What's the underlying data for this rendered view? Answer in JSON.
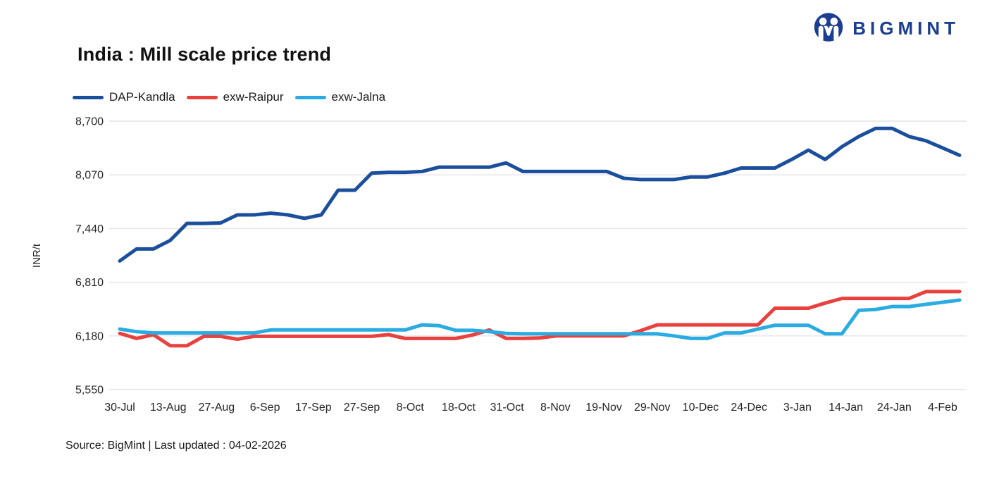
{
  "header": {
    "title": "India : Mill scale price trend",
    "brand": "BIGMINT"
  },
  "chart_data": {
    "type": "line",
    "title": "India : Mill scale price trend",
    "ylabel": "INR/t",
    "xlabel": "",
    "ylim": [
      5550,
      8700
    ],
    "yticks": [
      8700,
      8070,
      7440,
      6810,
      6180,
      5550
    ],
    "ytick_labels": [
      "8,700",
      "8,070",
      "7,440",
      "6,810",
      "6,180",
      "5,550"
    ],
    "grid": "horizontal",
    "legend_position": "top-left",
    "x_labels": [
      "30-Jul",
      "13-Aug",
      "27-Aug",
      "6-Sep",
      "17-Sep",
      "27-Sep",
      "8-Oct",
      "18-Oct",
      "31-Oct",
      "8-Nov",
      "19-Nov",
      "29-Nov",
      "10-Dec",
      "24-Dec",
      "3-Jan",
      "14-Jan",
      "24-Jan",
      "4-Feb"
    ],
    "series": [
      {
        "name": "DAP-Kandla",
        "color": "#1b4f9c",
        "values": [
          7060,
          7200,
          7200,
          7300,
          7500,
          7500,
          7505,
          7600,
          7600,
          7620,
          7600,
          7560,
          7600,
          7890,
          7890,
          8090,
          8100,
          8100,
          8110,
          8160,
          8160,
          8160,
          8160,
          8210,
          8110,
          8110,
          8110,
          8110,
          8110,
          8110,
          8030,
          8015,
          8015,
          8015,
          8045,
          8045,
          8090,
          8150,
          8150,
          8150,
          8250,
          8360,
          8250,
          8400,
          8520,
          8615,
          8615,
          8520,
          8470,
          8385,
          8300
        ]
      },
      {
        "name": "exw-Raipur",
        "color": "#e8413e",
        "values": [
          6210,
          6150,
          6195,
          6065,
          6065,
          6175,
          6175,
          6140,
          6175,
          6175,
          6175,
          6175,
          6175,
          6175,
          6175,
          6175,
          6195,
          6150,
          6150,
          6150,
          6150,
          6190,
          6250,
          6150,
          6150,
          6155,
          6180,
          6180,
          6180,
          6180,
          6180,
          6240,
          6310,
          6310,
          6310,
          6310,
          6310,
          6310,
          6310,
          6505,
          6505,
          6505,
          6565,
          6620,
          6620,
          6620,
          6620,
          6620,
          6700,
          6700,
          6700
        ]
      },
      {
        "name": "exw-Jalna",
        "color": "#2aabe2",
        "values": [
          6260,
          6230,
          6215,
          6215,
          6215,
          6215,
          6215,
          6215,
          6215,
          6250,
          6250,
          6250,
          6250,
          6250,
          6250,
          6250,
          6250,
          6250,
          6310,
          6300,
          6245,
          6245,
          6230,
          6210,
          6205,
          6205,
          6205,
          6205,
          6205,
          6205,
          6205,
          6205,
          6205,
          6180,
          6150,
          6150,
          6215,
          6215,
          6260,
          6305,
          6305,
          6305,
          6205,
          6205,
          6480,
          6490,
          6525,
          6525,
          6550,
          6575,
          6600
        ]
      }
    ]
  },
  "footer": {
    "source": "Source: BigMint | Last updated : 04-02-2026"
  },
  "colors": {
    "brand_navy": "#1b3e93",
    "gridline": "#e4e4e4",
    "text": "#1a1a1a"
  }
}
